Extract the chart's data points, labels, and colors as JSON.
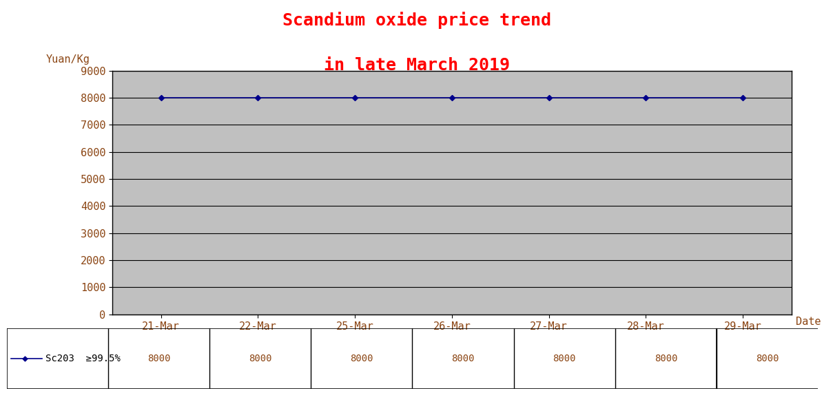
{
  "title_line1": "Scandium oxide price trend",
  "title_line2": "in late March 2019",
  "title_color": "#FF0000",
  "title_fontsize": 18,
  "ylabel": "Yuan/Kg",
  "xlabel": "Date",
  "all_dates": [
    "21-Mar",
    "22-Mar",
    "25-Mar",
    "26-Mar",
    "27-Mar",
    "28-Mar",
    "29-Mar"
  ],
  "values": [
    8000,
    8000,
    8000,
    8000,
    8000,
    8000,
    8000
  ],
  "line_color": "#00008B",
  "marker": "D",
  "marker_size": 4,
  "ylim": [
    0,
    9000
  ],
  "yticks": [
    0,
    1000,
    2000,
    3000,
    4000,
    5000,
    6000,
    7000,
    8000,
    9000
  ],
  "plot_bg_color": "#C0C0C0",
  "fig_bg_color": "#FFFFFF",
  "table_label": "Sc203  ≥99.5%",
  "grid_color": "#000000",
  "axis_color": "#000000",
  "tick_label_color": "#8B4513",
  "date_label_color": "#8B4513",
  "font_family": "monospace",
  "ylabel_color": "#8B4513",
  "ylabel_fontsize": 11,
  "xtick_fontsize": 11,
  "ytick_fontsize": 11,
  "table_value_color": "#8B4513",
  "table_label_color": "#000000",
  "table_fontsize": 10
}
